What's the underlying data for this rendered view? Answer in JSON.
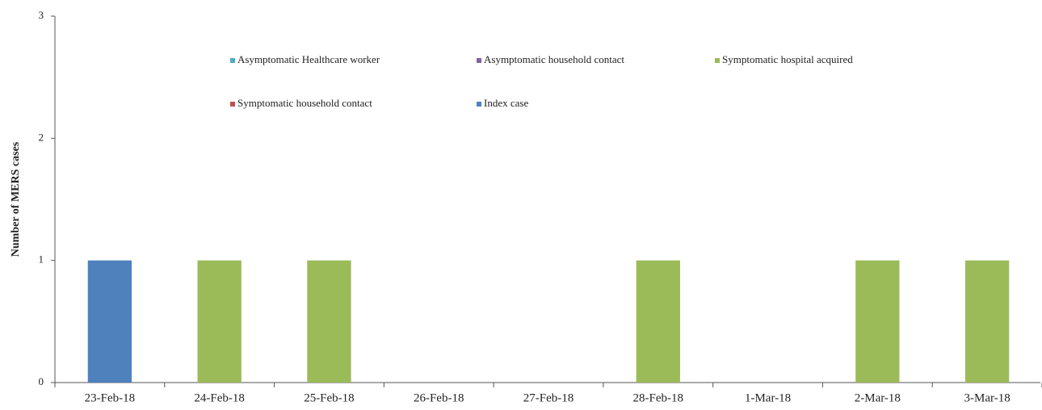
{
  "chart_data": {
    "type": "stacked_bar",
    "y_label": "Number of MERS cases",
    "categories": [
      "23-Feb-18",
      "24-Feb-18",
      "25-Feb-18",
      "26-Feb-18",
      "27-Feb-18",
      "28-Feb-18",
      "1-Mar-18",
      "2-Mar-18",
      "3-Mar-18"
    ],
    "series": [
      {
        "name": "Asymptomatic Healthcare worker",
        "color": "#4bacc6",
        "values": [
          0,
          0,
          0,
          0,
          0,
          0,
          0,
          0,
          0
        ]
      },
      {
        "name": "Asymptomatic household contact",
        "color": "#8064a2",
        "values": [
          0,
          0,
          0,
          0,
          0,
          0,
          0,
          0,
          0
        ]
      },
      {
        "name": "Symptomatic hospital acquired",
        "color": "#9bbb59",
        "values": [
          0,
          1,
          1,
          0,
          0,
          1,
          0,
          1,
          1
        ]
      },
      {
        "name": "Symptomatic household contact",
        "color": "#c0504d",
        "values": [
          0,
          0,
          0,
          0,
          0,
          0,
          0,
          0,
          0
        ]
      },
      {
        "name": "Index case",
        "color": "#4f81bd",
        "values": [
          1,
          0,
          0,
          0,
          0,
          0,
          0,
          0,
          0
        ]
      }
    ],
    "ylim": [
      0,
      3
    ],
    "yticks": [
      0,
      1,
      2,
      3
    ],
    "grid": false,
    "legend": "top"
  }
}
